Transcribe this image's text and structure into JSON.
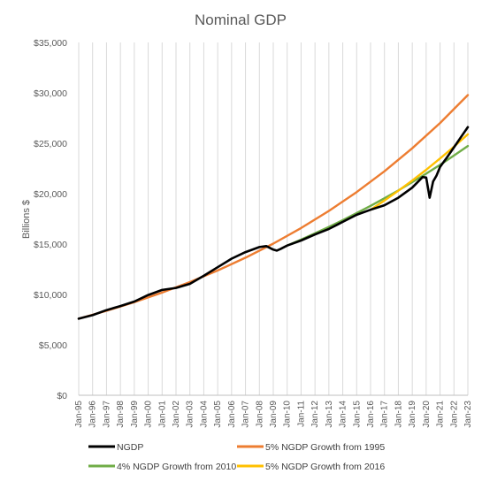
{
  "chart_data": {
    "type": "line",
    "title": "Nominal GDP",
    "xlabel": "",
    "ylabel": "Billions $",
    "ylim": [
      0,
      35000
    ],
    "yticks": [
      0,
      5000,
      10000,
      15000,
      20000,
      25000,
      30000,
      35000
    ],
    "ytick_labels": [
      "$0",
      "$5,000",
      "$10,000",
      "$15,000",
      "$20,000",
      "$25,000",
      "$30,000",
      "$35,000"
    ],
    "xlim": [
      1995,
      2023
    ],
    "xtick_labels": [
      "Jan-95",
      "Jan-96",
      "Jan-97",
      "Jan-98",
      "Jan-99",
      "Jan-00",
      "Jan-01",
      "Jan-02",
      "Jan-03",
      "Jan-04",
      "Jan-05",
      "Jan-06",
      "Jan-07",
      "Jan-08",
      "Jan-09",
      "Jan-10",
      "Jan-11",
      "Jan-12",
      "Jan-13",
      "Jan-14",
      "Jan-15",
      "Jan-16",
      "Jan-17",
      "Jan-18",
      "Jan-19",
      "Jan-20",
      "Jan-21",
      "Jan-22",
      "Jan-23"
    ],
    "grid": "vertical",
    "legend_position": "bottom",
    "series": [
      {
        "name": "NGDP",
        "color": "#000000",
        "x": [
          1995,
          1996,
          1997,
          1998,
          1999,
          2000,
          2001,
          2002,
          2003,
          2004,
          2005,
          2006,
          2007,
          2008,
          2008.5,
          2009,
          2009.25,
          2009.5,
          2010,
          2011,
          2012,
          2013,
          2014,
          2015,
          2016,
          2017,
          2018,
          2019,
          2019.75,
          2020,
          2020.25,
          2020.5,
          2020.75,
          2021,
          2021.5,
          2022,
          2022.5,
          2023
        ],
        "y": [
          7600,
          7950,
          8450,
          8850,
          9300,
          9950,
          10450,
          10650,
          11050,
          11850,
          12700,
          13550,
          14200,
          14700,
          14800,
          14450,
          14350,
          14500,
          14850,
          15350,
          15950,
          16500,
          17200,
          17900,
          18400,
          18850,
          19600,
          20600,
          21650,
          21600,
          19600,
          21200,
          21800,
          22650,
          23600,
          24600,
          25600,
          26600
        ]
      },
      {
        "name": "5% NGDP Growth from 1995",
        "color": "#ed7d31",
        "x": [
          1995,
          1997,
          1999,
          2001,
          2003,
          2005,
          2007,
          2009,
          2011,
          2013,
          2015,
          2017,
          2019,
          2021,
          2023
        ],
        "y": [
          7600,
          8380,
          9240,
          10180,
          11230,
          12380,
          13650,
          15040,
          16590,
          18290,
          20160,
          22220,
          24500,
          27010,
          29780
        ]
      },
      {
        "name": "4% NGDP Growth from 2010",
        "color": "#70ad47",
        "x": [
          2010,
          2011,
          2012,
          2013,
          2014,
          2015,
          2016,
          2017,
          2018,
          2019,
          2020,
          2021,
          2022,
          2023
        ],
        "y": [
          14850,
          15440,
          16060,
          16700,
          17370,
          18070,
          18790,
          19540,
          20320,
          21140,
          21980,
          22860,
          23780,
          24730
        ]
      },
      {
        "name": "5% NGDP Growth from 2016",
        "color": "#ffc000",
        "x": [
          2016,
          2017,
          2018,
          2019,
          2020,
          2021,
          2022,
          2023
        ],
        "y": [
          18400,
          19320,
          20290,
          21300,
          22370,
          23490,
          24660,
          25890
        ]
      }
    ]
  }
}
